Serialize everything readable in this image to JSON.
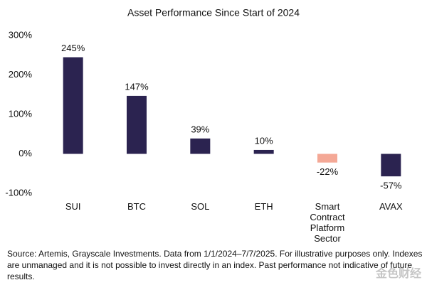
{
  "chart_data": {
    "type": "bar",
    "title": "Asset Performance Since Start of 2024",
    "categories": [
      "SUI",
      "BTC",
      "SOL",
      "ETH",
      "Smart Contract Platform Sector",
      "AVAX"
    ],
    "values": [
      245,
      147,
      39,
      10,
      -22,
      -57
    ],
    "value_labels": [
      "245%",
      "147%",
      "39%",
      "10%",
      "-22%",
      "-57%"
    ],
    "colors": [
      "#2b2350",
      "#2b2350",
      "#2b2350",
      "#2b2350",
      "#f4a896",
      "#2b2350"
    ],
    "ylim": [
      -100,
      300
    ],
    "yticks": [
      {
        "value": -100,
        "label": "-100%"
      },
      {
        "value": 0,
        "label": "0%"
      },
      {
        "value": 100,
        "label": "100%"
      },
      {
        "value": 200,
        "label": "200%"
      },
      {
        "value": 300,
        "label": "300%"
      }
    ],
    "grid": false,
    "source": "Source: Artemis, Grayscale Investments. Data from 1/1/2024–7/7/2025. For illustrative purposes only. Indexes are unmanaged and it is not possible to invest directly in an index. Past performance not indicative of future results.",
    "watermark": "金色财经"
  }
}
